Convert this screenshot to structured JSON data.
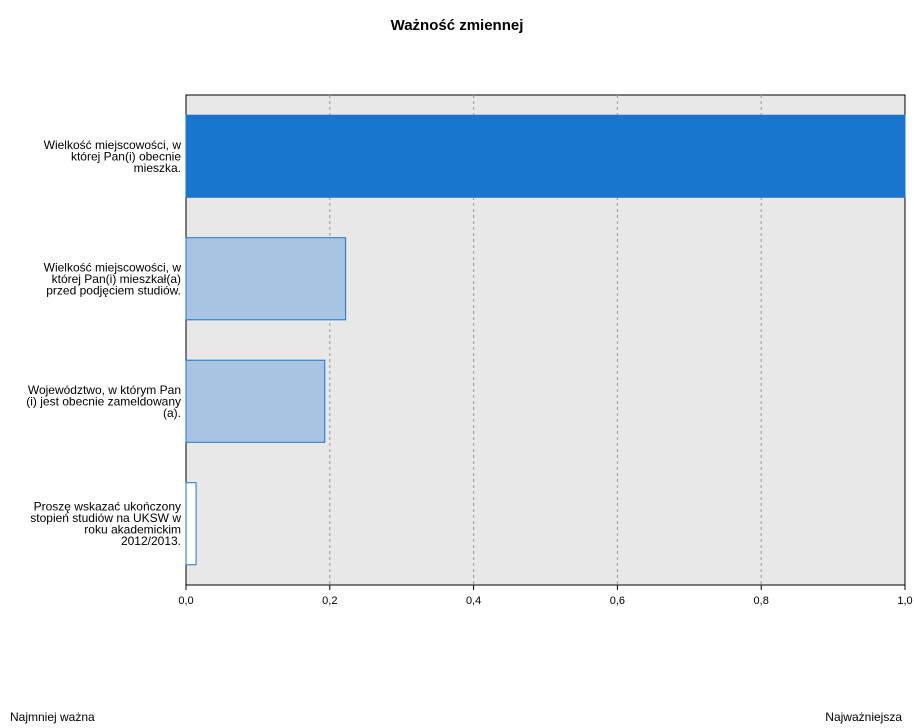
{
  "chart_data": {
    "type": "bar",
    "orientation": "horizontal",
    "title": "Ważność zmiennej",
    "categories": [
      "Wielkość miejscowości, w|której Pan(i) obecnie|mieszka.",
      "Wielkość miejscowości, w|której Pan(i) mieszkał(a)|przed podjęciem studiów.",
      "Województwo, w którym Pan|(i) jest obecnie zameldowany|(a).",
      "Proszę wskazać ukończony|stopień studiów na UKSW w|roku akademickim|2012/2013."
    ],
    "values": [
      1.0,
      0.222,
      0.193,
      0.014
    ],
    "xlim": [
      0,
      1
    ],
    "xticks": [
      "0,0",
      "0,2",
      "0,4",
      "0,6",
      "0,8",
      "1,0"
    ],
    "grid": true,
    "colors": {
      "strongest": "#1a75cf",
      "light": "#a9c4e2",
      "light_fill": "#ffffff",
      "edge": "#1a75cf",
      "plot_bg": "#e8e8e8",
      "grid": "#999999"
    },
    "legend": {
      "low": "Najmniej ważna",
      "high": "Najważniejsza"
    }
  }
}
